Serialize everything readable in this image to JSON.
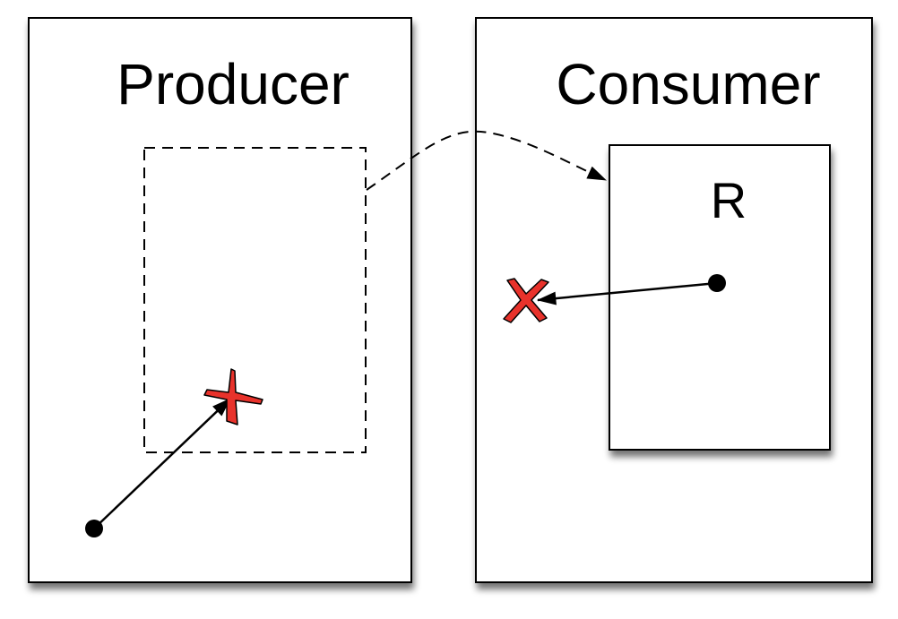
{
  "producer": {
    "title": "Producer"
  },
  "consumer": {
    "title": "Consumer",
    "inner_box": {
      "label": "R"
    }
  },
  "colors": {
    "stroke": "#000000",
    "background": "#ffffff",
    "cross": "#e8322b",
    "shadow": "#9a9a9a"
  }
}
